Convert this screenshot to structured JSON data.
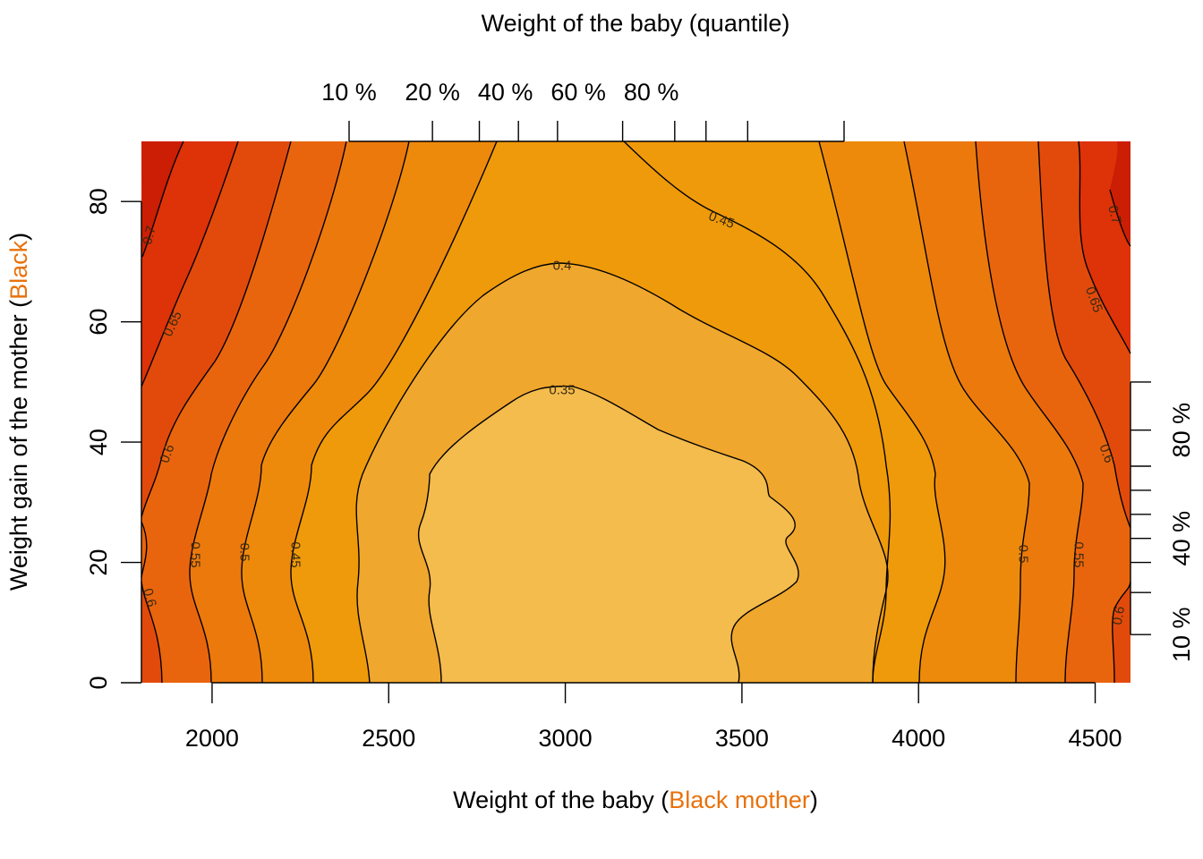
{
  "chart_data": {
    "type": "contour",
    "title": "",
    "top_axis_label": "Weight of the baby (quantile)",
    "xlabel": {
      "prefix": "Weight of the baby (",
      "highlight": "Black mother",
      "suffix": ")"
    },
    "ylabel": {
      "prefix": "Weight gain of the mother (",
      "highlight": "Black",
      "suffix": ")"
    },
    "highlight_color": "#E8720C",
    "xlim": [
      1800,
      4600
    ],
    "ylim": [
      0,
      90
    ],
    "x_ticks": [
      2000,
      2500,
      3000,
      3500,
      4000,
      4500
    ],
    "y_ticks": [
      0,
      20,
      40,
      60,
      80
    ],
    "top_quantile_ticks": [
      1900,
      2220,
      2400,
      2550,
      2700,
      2950,
      3150,
      3270,
      3430,
      3800
    ],
    "top_quantile_labels": [
      {
        "label": "10 %",
        "x": 1900
      },
      {
        "label": "20 %",
        "x": 2220
      },
      {
        "label": "40 %",
        "x": 2500
      },
      {
        "label": "60 %",
        "x": 2780
      },
      {
        "label": "80 %",
        "x": 3060
      }
    ],
    "right_quantile_ticks": [
      8,
      15,
      20,
      24,
      28,
      32,
      36,
      42,
      50
    ],
    "right_quantile_labels": [
      {
        "label": "10 %",
        "y": 8
      },
      {
        "label": "40 %",
        "y": 24
      },
      {
        "label": "80 %",
        "y": 42
      }
    ],
    "contour_levels": [
      0.35,
      0.4,
      0.45,
      0.5,
      0.55,
      0.6,
      0.65,
      0.7
    ],
    "fill_colors": [
      "#F4BB4D",
      "#F0A72D",
      "#EF9A0A",
      "#EE8A0B",
      "#EC790C",
      "#E9650D",
      "#E24A0C",
      "#DE3208",
      "#CC1E04"
    ],
    "contour_labels": [
      "0.35",
      "0.4",
      "0.45",
      "0.45",
      "0.5",
      "0.5",
      "0.55",
      "0.55",
      "0.6",
      "0.6",
      "0.6",
      "0.6",
      "0.65",
      "0.65",
      "0.7",
      "0.7"
    ]
  }
}
